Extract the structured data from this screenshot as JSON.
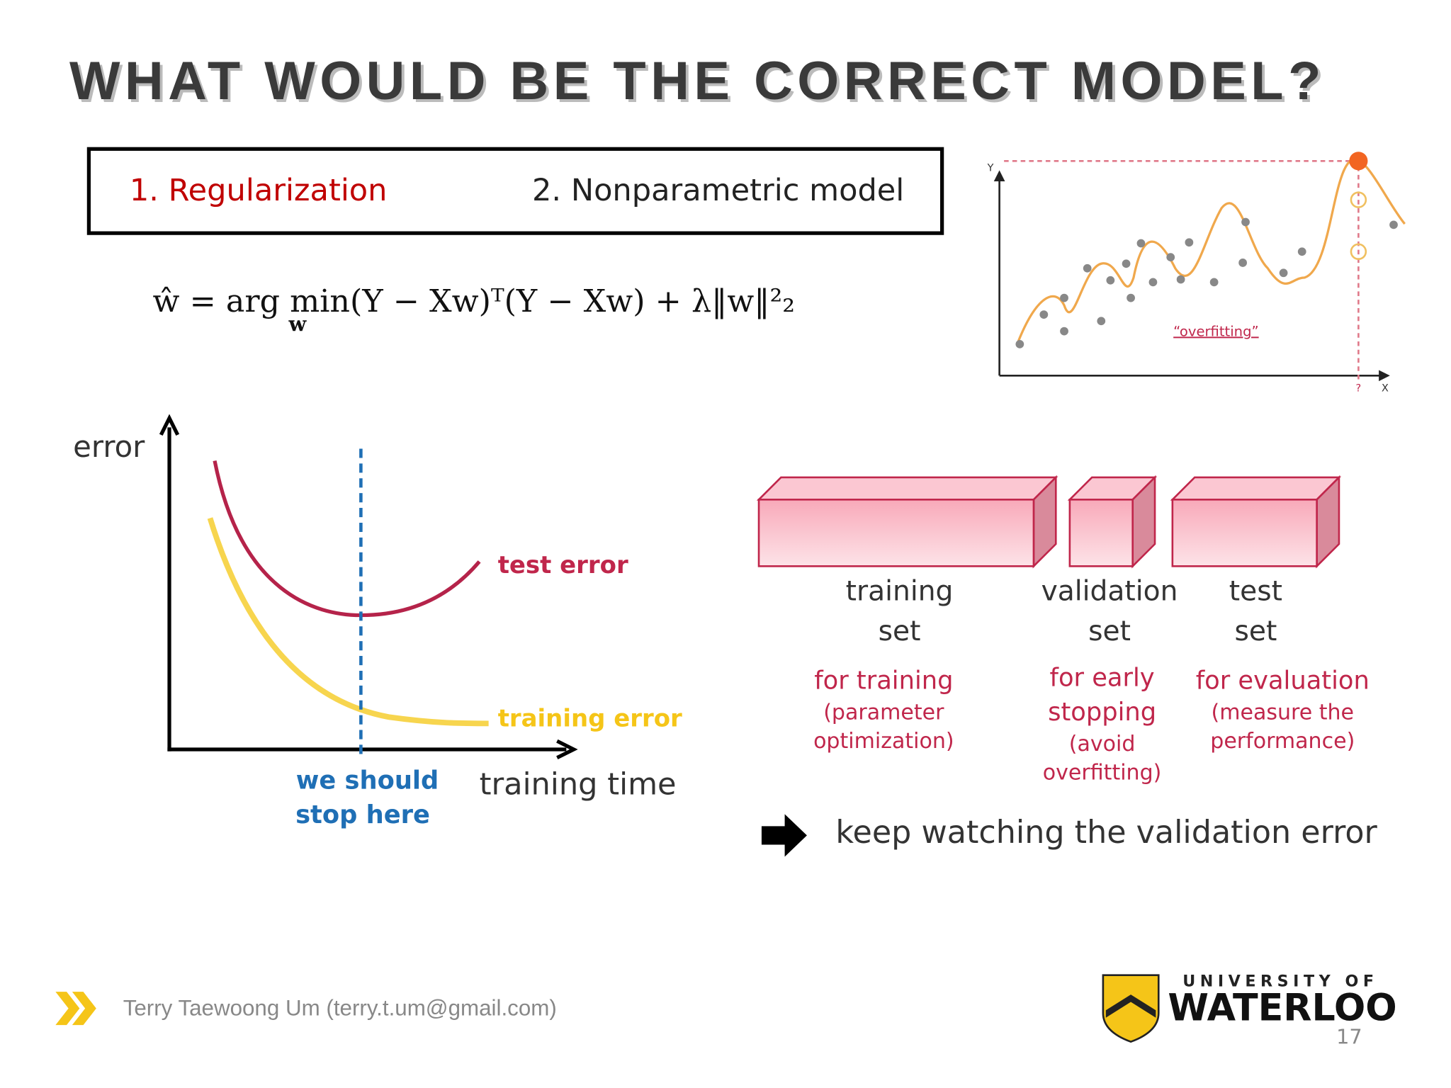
{
  "header": {
    "title": "WHAT WOULD BE THE CORRECT MODEL?"
  },
  "options": {
    "first": "1. Regularization",
    "second": "2. Nonparametric model"
  },
  "equation": {
    "main": "ŵ = arg min(Y − Xw)ᵀ(Y − Xw) + λ‖w‖²₂",
    "under": "w"
  },
  "overfit_figure": {
    "y_axis": "Y",
    "x_axis": "X",
    "question": "?",
    "label": "“overfitting”"
  },
  "error_figure": {
    "y_label": "error",
    "x_label": "training time",
    "test_curve": "test error",
    "train_curve": "training error",
    "stop_line": [
      "we should",
      "stop here"
    ]
  },
  "datasets": [
    {
      "name": [
        "training",
        "set"
      ],
      "purpose": "for training",
      "detail": [
        "(parameter",
        "optimization)"
      ]
    },
    {
      "name": [
        "validation",
        "set"
      ],
      "purpose": [
        "for early",
        "stopping"
      ],
      "detail": [
        "(avoid",
        "overfitting)"
      ]
    },
    {
      "name": [
        "test",
        "set"
      ],
      "purpose": "for evaluation",
      "detail": [
        "(measure the",
        "performance)"
      ]
    }
  ],
  "conclusion": "keep watching the validation error",
  "footer": {
    "author": "Terry Taewoong Um (terry.t.um@gmail.com)",
    "university_top": "UNIVERSITY OF",
    "university_name": "WATERLOO",
    "page": "17"
  }
}
